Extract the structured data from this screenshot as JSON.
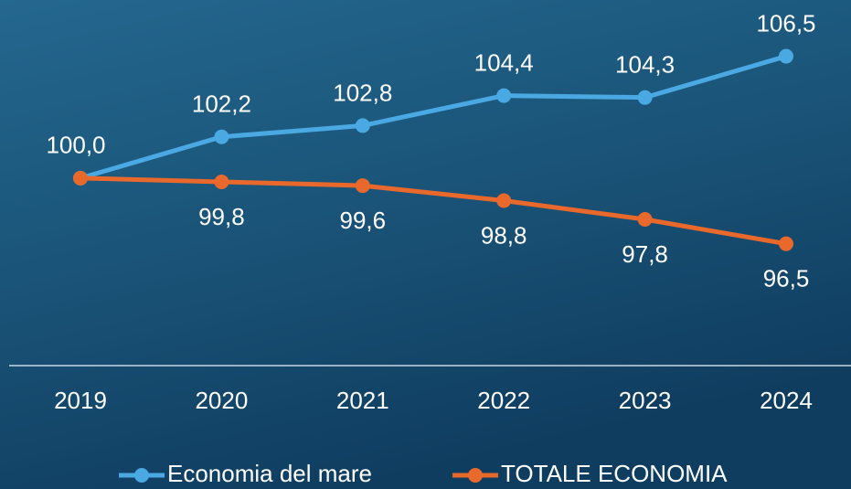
{
  "chart_data": {
    "type": "line",
    "categories": [
      "2019",
      "2020",
      "2021",
      "2022",
      "2023",
      "2024"
    ],
    "series": [
      {
        "name": "Economia del mare",
        "color": "#4aa9e2",
        "values": [
          100.0,
          102.2,
          102.8,
          104.4,
          104.3,
          106.5
        ],
        "value_labels": [
          "100,0",
          "102,2",
          "102,8",
          "104,4",
          "104,3",
          "106,5"
        ]
      },
      {
        "name": "TOTALE ECONOMIA",
        "color": "#e8692b",
        "values": [
          100.0,
          99.8,
          99.6,
          98.8,
          97.8,
          96.5
        ],
        "value_labels": [
          null,
          "99,8",
          "99,6",
          "98,8",
          "97,8",
          "96,5"
        ]
      }
    ],
    "ylim": [
      90,
      109.5
    ]
  }
}
